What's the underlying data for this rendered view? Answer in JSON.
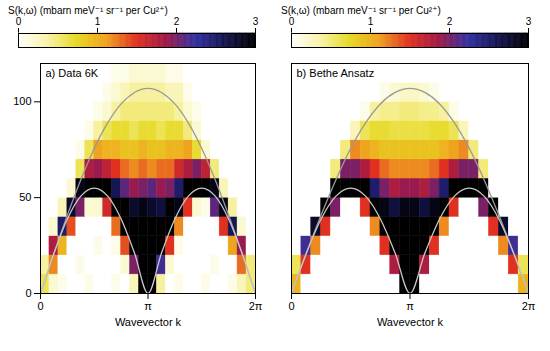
{
  "chart_data": [
    {
      "type": "heatmap",
      "title": "a) Data 6K",
      "x_label": "Wavevector k",
      "xlim": [
        0,
        6.2832
      ],
      "xticks": [
        0,
        {
          "value": 3.1416,
          "label": "π"
        },
        {
          "value": 6.2832,
          "label": "2π"
        }
      ],
      "ylim": [
        0,
        120
      ],
      "yticks": [
        0,
        50,
        100
      ],
      "colorbar": {
        "label": "S(k,ω) (mbarn meV⁻¹ sr⁻¹ per Cu²⁺)",
        "range": [
          0,
          3
        ],
        "ticks": [
          0,
          1,
          2,
          3
        ]
      },
      "cells": {
        "k": [
          0.1309,
          0.3927,
          0.6545,
          0.9163,
          1.1781,
          1.4399,
          1.7017,
          1.9635,
          2.2253,
          2.4871,
          2.7489,
          3.0107,
          3.2725,
          3.5343,
          3.7961,
          4.0579,
          4.3197,
          4.5815,
          4.8433,
          5.1051,
          5.3669,
          5.6287,
          5.8905,
          6.1523
        ],
        "omega": [
          5,
          15,
          25,
          35,
          45,
          55,
          65,
          75,
          85,
          95,
          105,
          115
        ],
        "values": [
          [
            0.6,
            0.2,
            0.1,
            0,
            0,
            0.1,
            0,
            0,
            0.1,
            0,
            0.3,
            3,
            3,
            0.4,
            0,
            0.1,
            0,
            0,
            0.1,
            0,
            0,
            0.1,
            0.3,
            0.5
          ],
          [
            0.4,
            1.2,
            0,
            0,
            0.1,
            0,
            0,
            0,
            0,
            0.2,
            2.0,
            3,
            3,
            2.2,
            0.2,
            0,
            0,
            0,
            0,
            0.1,
            0,
            0,
            1.3,
            0.5
          ],
          [
            0,
            1.8,
            1.0,
            0,
            0,
            0,
            0.1,
            0,
            0.1,
            1.4,
            3,
            3,
            3,
            3,
            1.5,
            0.1,
            0,
            0,
            0,
            0,
            0,
            1.1,
            1.9,
            0
          ],
          [
            0,
            0.2,
            2.5,
            1.4,
            0,
            0,
            0,
            0,
            1.3,
            3,
            3,
            3,
            3,
            3,
            3,
            1.2,
            0,
            0,
            0,
            0,
            1.5,
            2.6,
            0.2,
            0
          ],
          [
            0,
            0,
            0.3,
            2.8,
            2.0,
            0.2,
            0.2,
            1.6,
            3,
            3,
            2.8,
            2.9,
            2.8,
            2.7,
            3,
            2.9,
            1.5,
            0.2,
            0.1,
            2.1,
            2.9,
            0.4,
            0,
            0
          ],
          [
            0,
            0,
            0,
            0.2,
            2.9,
            3,
            3,
            3,
            2.6,
            2.1,
            1.9,
            2.0,
            2.1,
            1.9,
            2.0,
            2.5,
            3,
            3,
            3,
            2.9,
            0.3,
            0,
            0,
            0
          ],
          [
            0,
            0,
            0,
            0,
            0.6,
            1.8,
            1.9,
            1.7,
            1.5,
            1.3,
            1.2,
            1.3,
            1.2,
            1.3,
            1.3,
            1.6,
            1.8,
            2.0,
            1.7,
            0.5,
            0,
            0,
            0,
            0
          ],
          [
            0,
            0,
            0,
            0,
            0.1,
            0.6,
            1.1,
            1.0,
            1.0,
            0.9,
            0.9,
            1.0,
            0.9,
            0.9,
            1.0,
            1.0,
            1.1,
            0.7,
            0.2,
            0,
            0,
            0,
            0,
            0
          ],
          [
            0,
            0,
            0,
            0,
            0,
            0.1,
            0.4,
            0.6,
            0.7,
            0.7,
            0.6,
            0.7,
            0.7,
            0.6,
            0.7,
            0.7,
            0.5,
            0.2,
            0,
            0,
            0,
            0,
            0,
            0
          ],
          [
            0,
            0,
            0,
            0,
            0,
            0,
            0.1,
            0.2,
            0.4,
            0.5,
            0.5,
            0.5,
            0.5,
            0.5,
            0.5,
            0.4,
            0.2,
            0.1,
            0,
            0,
            0,
            0,
            0,
            0
          ],
          [
            0,
            0,
            0,
            0,
            0,
            0,
            0,
            0.1,
            0.2,
            0.3,
            0.4,
            0.4,
            0.4,
            0.4,
            0.3,
            0.3,
            0.1,
            0,
            0,
            0,
            0,
            0,
            0,
            0
          ],
          [
            0,
            0,
            0,
            0,
            0,
            0,
            0,
            0,
            0.1,
            0.1,
            0.2,
            0.2,
            0.2,
            0.2,
            0.1,
            0.1,
            0,
            0,
            0,
            0,
            0,
            0,
            0,
            0
          ]
        ]
      },
      "lines": [
        {
          "color": "#999999",
          "k": [
            0,
            0.3927,
            0.7854,
            1.1781,
            1.5708,
            1.9635,
            2.3562,
            2.7489,
            3.1416,
            3.5343,
            3.927,
            4.3197,
            4.7124,
            5.1051,
            5.4978,
            5.8905,
            6.2832
          ],
          "omega": [
            0,
            20.9,
            40.9,
            59.4,
            75.7,
            89,
            98.9,
            104.9,
            107,
            104.9,
            98.9,
            89,
            75.7,
            59.4,
            40.9,
            20.9,
            0
          ]
        },
        {
          "color": "#c8c8c8",
          "k": [
            0,
            0.3927,
            0.7854,
            1.1781,
            1.5708,
            1.9635,
            2.3562,
            2.7489,
            3.1416,
            3.5343,
            3.927,
            4.3197,
            4.7124,
            5.1051,
            5.4978,
            5.8905,
            6.2832
          ],
          "omega": [
            0,
            21,
            38.9,
            50.8,
            55,
            50.8,
            38.9,
            21,
            0,
            21,
            38.9,
            50.8,
            55,
            50.8,
            38.9,
            21,
            0
          ]
        }
      ]
    },
    {
      "type": "heatmap",
      "title": "b) Bethe Ansatz",
      "x_label": "Wavevector k",
      "xlim": [
        0,
        6.2832
      ],
      "xticks": [
        0,
        {
          "value": 3.1416,
          "label": "π"
        },
        {
          "value": 6.2832,
          "label": "2π"
        }
      ],
      "ylim": [
        0,
        120
      ],
      "tick_labels": "x",
      "colorbar": {
        "label": "S(k,ω) (mbarn meV⁻¹ sr⁻¹ per Cu²⁺)",
        "range": [
          0,
          3
        ],
        "ticks": [
          0,
          1,
          2,
          3
        ]
      },
      "cells": {
        "k": [
          0.1309,
          0.3927,
          0.6545,
          0.9163,
          1.1781,
          1.4399,
          1.7017,
          1.9635,
          2.2253,
          2.4871,
          2.7489,
          3.0107,
          3.2725,
          3.5343,
          3.7961,
          4.0579,
          4.3197,
          4.5815,
          4.8433,
          5.1051,
          5.3669,
          5.6287,
          5.8905,
          6.1523
        ],
        "omega": [
          5,
          15,
          25,
          35,
          45,
          55,
          65,
          75,
          85,
          95,
          105,
          115
        ],
        "values": [
          [
            1.0,
            0,
            0,
            0,
            0,
            0,
            0,
            0,
            0,
            0,
            0,
            3,
            3,
            0,
            0,
            0,
            0,
            0,
            0,
            0,
            0,
            0,
            0,
            1.0
          ],
          [
            0.6,
            1.5,
            0,
            0,
            0,
            0,
            0,
            0,
            0,
            0,
            1.8,
            3,
            3,
            1.8,
            0,
            0,
            0,
            0,
            0,
            0,
            0,
            0,
            1.5,
            0.6
          ],
          [
            0,
            2.2,
            1.2,
            0,
            0,
            0,
            0,
            0,
            0,
            1.5,
            3,
            3,
            3,
            3,
            1.5,
            0,
            0,
            0,
            0,
            0,
            0,
            1.2,
            2.2,
            0
          ],
          [
            0,
            0,
            2.8,
            1.5,
            0,
            0,
            0,
            0,
            1.2,
            3,
            3,
            3,
            3,
            3,
            3,
            1.2,
            0,
            0,
            0,
            0,
            1.5,
            2.8,
            0,
            0
          ],
          [
            0,
            0,
            0,
            3,
            2.0,
            0,
            0,
            1.5,
            3,
            2.9,
            2.7,
            2.9,
            2.9,
            2.7,
            2.9,
            3,
            1.5,
            0,
            0,
            2.0,
            3,
            0,
            0,
            0
          ],
          [
            0,
            0,
            0,
            0,
            3,
            3,
            3,
            3,
            2.5,
            2.0,
            1.8,
            1.9,
            1.9,
            1.8,
            2.0,
            2.5,
            3,
            3,
            3,
            3,
            0,
            0,
            0,
            0
          ],
          [
            0,
            0,
            0,
            0,
            0.5,
            2.0,
            2.0,
            1.8,
            1.5,
            1.3,
            1.2,
            1.2,
            1.2,
            1.2,
            1.3,
            1.5,
            1.8,
            2.0,
            2.0,
            0.5,
            0,
            0,
            0,
            0
          ],
          [
            0,
            0,
            0,
            0,
            0,
            0.5,
            1.2,
            1.1,
            1.0,
            0.9,
            0.9,
            0.9,
            0.9,
            0.9,
            0.9,
            1.0,
            1.1,
            1.2,
            0.5,
            0,
            0,
            0,
            0,
            0
          ],
          [
            0,
            0,
            0,
            0,
            0,
            0,
            0.3,
            0.6,
            0.7,
            0.7,
            0.65,
            0.65,
            0.65,
            0.65,
            0.7,
            0.7,
            0.6,
            0.3,
            0,
            0,
            0,
            0,
            0,
            0
          ],
          [
            0,
            0,
            0,
            0,
            0,
            0,
            0,
            0.1,
            0.4,
            0.45,
            0.45,
            0.5,
            0.5,
            0.45,
            0.45,
            0.4,
            0.1,
            0,
            0,
            0,
            0,
            0,
            0,
            0
          ],
          [
            0,
            0,
            0,
            0,
            0,
            0,
            0,
            0,
            0,
            0.1,
            0.2,
            0.25,
            0.25,
            0.2,
            0.1,
            0,
            0,
            0,
            0,
            0,
            0,
            0,
            0,
            0
          ],
          [
            0,
            0,
            0,
            0,
            0,
            0,
            0,
            0,
            0,
            0,
            0,
            0,
            0,
            0,
            0,
            0,
            0,
            0,
            0,
            0,
            0,
            0,
            0,
            0
          ]
        ]
      },
      "lines": [
        {
          "color": "#999999",
          "k": [
            0,
            0.3927,
            0.7854,
            1.1781,
            1.5708,
            1.9635,
            2.3562,
            2.7489,
            3.1416,
            3.5343,
            3.927,
            4.3197,
            4.7124,
            5.1051,
            5.4978,
            5.8905,
            6.2832
          ],
          "omega": [
            0,
            20.9,
            40.9,
            59.4,
            75.7,
            89,
            98.9,
            104.9,
            107,
            104.9,
            98.9,
            89,
            75.7,
            59.4,
            40.9,
            20.9,
            0
          ]
        },
        {
          "color": "#c8c8c8",
          "k": [
            0,
            0.3927,
            0.7854,
            1.1781,
            1.5708,
            1.9635,
            2.3562,
            2.7489,
            3.1416,
            3.5343,
            3.927,
            4.3197,
            4.7124,
            5.1051,
            5.4978,
            5.8905,
            6.2832
          ],
          "omega": [
            0,
            21,
            38.9,
            50.8,
            55,
            50.8,
            38.9,
            21,
            0,
            21,
            38.9,
            50.8,
            55,
            50.8,
            38.9,
            21,
            0
          ]
        }
      ]
    }
  ]
}
